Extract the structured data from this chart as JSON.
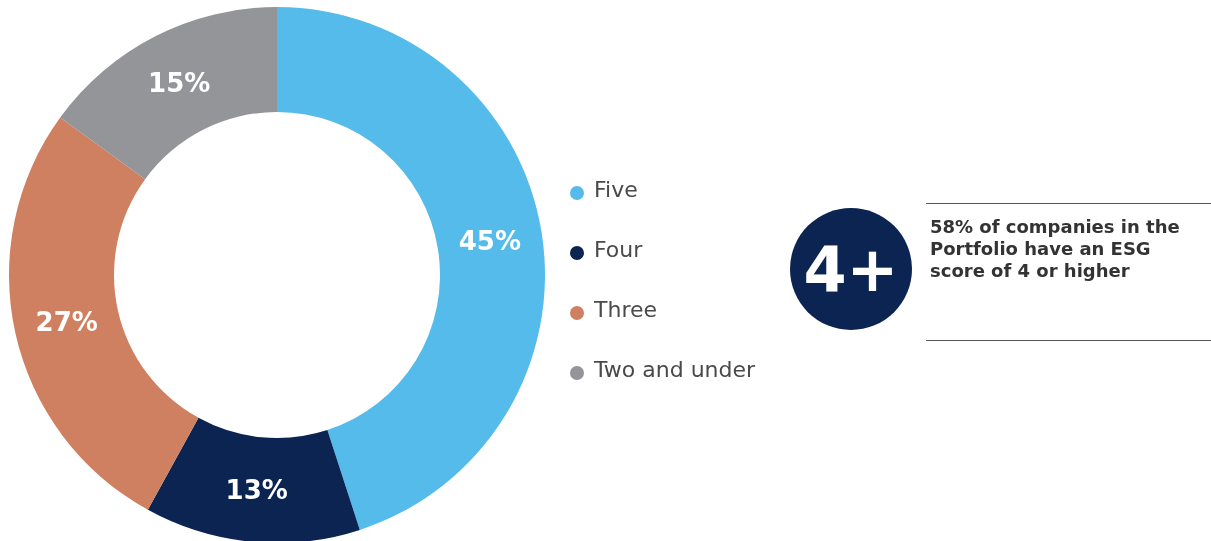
{
  "chart_data": {
    "type": "donut",
    "categories": [
      "Five",
      "Four",
      "Three",
      "Two and under"
    ],
    "values": [
      45,
      13,
      27,
      15
    ],
    "colors": [
      "#55bbea",
      "#0c2451",
      "#cf8060",
      "#939598"
    ],
    "value_labels": [
      "45%",
      "13%",
      "27%",
      "15%"
    ],
    "legend": "right",
    "annotations": [
      "4+",
      "58% of companies in the Portfolio have an ESG score of 4 or higher"
    ]
  }
}
